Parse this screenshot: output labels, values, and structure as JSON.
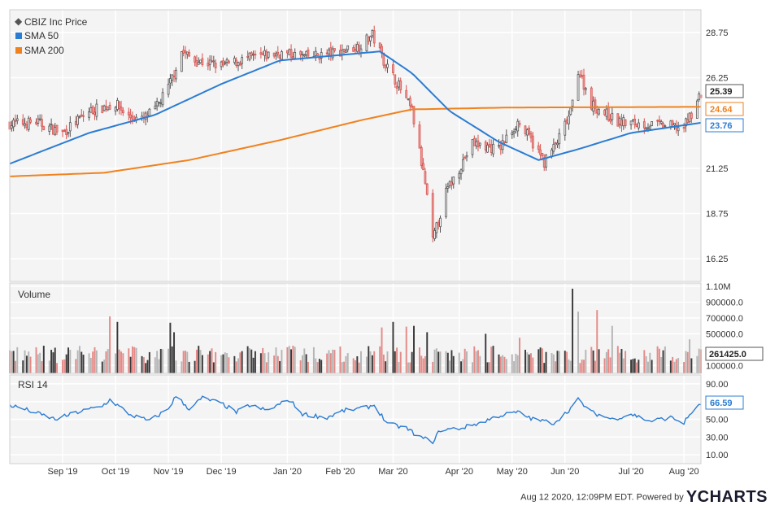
{
  "chart_data": {
    "type": "candlestick",
    "legend": [
      {
        "name": "CBIZ Inc Price",
        "color": "#555555",
        "marker": "diamond"
      },
      {
        "name": "SMA 50",
        "color": "#2b7cd3",
        "marker": "square"
      },
      {
        "name": "SMA 200",
        "color": "#f0821e",
        "marker": "square"
      }
    ],
    "x_ticks": [
      "Sep '19",
      "Oct '19",
      "Nov '19",
      "Dec '19",
      "Jan '20",
      "Feb '20",
      "Mar '20",
      "Apr '20",
      "May '20",
      "Jun '20",
      "Jul '20",
      "Aug '20"
    ],
    "price": {
      "ylim": [
        15.0,
        30.0
      ],
      "yticks": [
        "28.75",
        "26.25",
        "21.25",
        "18.75",
        "16.25"
      ],
      "last_price": 25.39,
      "last_price_label": "25.39",
      "sma200_last": 24.64,
      "sma200_label": "24.64",
      "sma50_last": 23.76,
      "sma50_label": "23.76",
      "close_points": [
        [
          "Aug 12 2019",
          23.7
        ],
        [
          "Aug 26 2019",
          23.8
        ],
        [
          "Sep 9 2019",
          23.2
        ],
        [
          "Sep 23 2019",
          24.4
        ],
        [
          "Oct 7 2019",
          24.8
        ],
        [
          "Oct 14 2019",
          24.1
        ],
        [
          "Oct 21 2019",
          23.9
        ],
        [
          "Oct 28 2019",
          24.5
        ],
        [
          "Nov 4 2019",
          25.7
        ],
        [
          "Nov 11 2019",
          27.7
        ],
        [
          "Nov 18 2019",
          27.2
        ],
        [
          "Dec 2 2019",
          26.9
        ],
        [
          "Dec 16 2019",
          27.3
        ],
        [
          "Jan 2 2020",
          27.6
        ],
        [
          "Jan 16 2020",
          27.4
        ],
        [
          "Jan 30 2020",
          27.6
        ],
        [
          "Feb 13 2020",
          28.0
        ],
        [
          "Feb 20 2020",
          28.6
        ],
        [
          "Feb 27 2020",
          27.0
        ],
        [
          "Mar 5 2020",
          25.8
        ],
        [
          "Mar 12 2020",
          24.4
        ],
        [
          "Mar 19 2020",
          20.4
        ],
        [
          "Mar 23 2020",
          17.2
        ],
        [
          "Mar 30 2020",
          19.9
        ],
        [
          "Apr 13 2020",
          22.6
        ],
        [
          "Apr 27 2020",
          22.3
        ],
        [
          "May 7 2020",
          23.8
        ],
        [
          "May 14 2020",
          22.8
        ],
        [
          "May 21 2020",
          21.6
        ],
        [
          "May 28 2020",
          22.7
        ],
        [
          "Jun 4 2020",
          24.3
        ],
        [
          "Jun 8 2020",
          26.7
        ],
        [
          "Jun 15 2020",
          24.8
        ],
        [
          "Jun 29 2020",
          23.8
        ],
        [
          "Jul 10 2020",
          23.7
        ],
        [
          "Jul 24 2020",
          23.6
        ],
        [
          "Aug 3 2020",
          23.5
        ],
        [
          "Aug 7 2020",
          24.3
        ],
        [
          "Aug 12 2020",
          25.39
        ]
      ],
      "sma50_points": [
        [
          "Aug 12 2019",
          21.5
        ],
        [
          "Sep 23 2019",
          23.2
        ],
        [
          "Oct 28 2019",
          24.2
        ],
        [
          "Dec 2 2019",
          25.9
        ],
        [
          "Jan 2 2020",
          27.2
        ],
        [
          "Feb 3 2020",
          27.5
        ],
        [
          "Feb 24 2020",
          27.7
        ],
        [
          "Mar 12 2020",
          26.5
        ],
        [
          "Apr 1 2020",
          24.4
        ],
        [
          "Apr 27 2020",
          22.7
        ],
        [
          "May 18 2020",
          21.7
        ],
        [
          "Jun 8 2020",
          22.3
        ],
        [
          "Jul 6 2020",
          23.2
        ],
        [
          "Aug 12 2020",
          23.76
        ]
      ],
      "sma200_points": [
        [
          "Aug 12 2019",
          20.8
        ],
        [
          "Oct 1 2019",
          21.0
        ],
        [
          "Nov 15 2019",
          21.7
        ],
        [
          "Jan 2 2020",
          22.8
        ],
        [
          "Feb 14 2020",
          23.9
        ],
        [
          "Mar 12 2020",
          24.5
        ],
        [
          "May 1 2020",
          24.6
        ],
        [
          "Aug 12 2020",
          24.64
        ]
      ]
    },
    "volume": {
      "label": "Volume",
      "ylim": [
        0,
        1100000
      ],
      "yticks": [
        {
          "value": 1100000,
          "label": "1.10M"
        },
        {
          "value": 900000,
          "label": "900000.0"
        },
        {
          "value": 700000,
          "label": "700000.0"
        },
        {
          "value": 500000,
          "label": "500000.0"
        },
        {
          "value": 100000,
          "label": "100000.0"
        }
      ],
      "last_value": 261425.0,
      "last_label": "261425.0",
      "spikes": [
        [
          "Oct 4 2019",
          720000
        ],
        [
          "Oct 8 2019",
          650000
        ],
        [
          "Nov 5 2019",
          640000
        ],
        [
          "Nov 7 2019",
          520000
        ],
        [
          "Jan 9 2020",
          350000
        ],
        [
          "Feb 25 2020",
          580000
        ],
        [
          "Mar 2 2020",
          650000
        ],
        [
          "Mar 9 2020",
          590000
        ],
        [
          "Mar 13 2020",
          600000
        ],
        [
          "Mar 20 2020",
          520000
        ],
        [
          "Apr 20 2020",
          500000
        ],
        [
          "May 8 2020",
          450000
        ],
        [
          "Jun 5 2020",
          1070000
        ],
        [
          "Jun 8 2020",
          780000
        ],
        [
          "Jun 18 2020",
          800000
        ],
        [
          "Jun 26 2020",
          600000
        ],
        [
          "Aug 6 2020",
          430000
        ]
      ]
    },
    "rsi": {
      "label": "RSI 14",
      "ylim": [
        0,
        100
      ],
      "yticks": [
        {
          "value": 90,
          "label": "90.00"
        },
        {
          "value": 70,
          "label": "70.00"
        },
        {
          "value": 50,
          "label": "50.00"
        },
        {
          "value": 30,
          "label": "30.00"
        },
        {
          "value": 10,
          "label": "10.00"
        }
      ],
      "last_value": 66.59,
      "last_label": "66.59",
      "points": [
        [
          "Aug 12 2019",
          66
        ],
        [
          "Aug 22 2019",
          60
        ],
        [
          "Sep 5 2019",
          50
        ],
        [
          "Sep 17 2019",
          58
        ],
        [
          "Sep 30 2019",
          65
        ],
        [
          "Oct 4 2019",
          72
        ],
        [
          "Oct 15 2019",
          55
        ],
        [
          "Oct 25 2019",
          48
        ],
        [
          "Nov 4 2019",
          62
        ],
        [
          "Nov 8 2019",
          76
        ],
        [
          "Nov 15 2019",
          62
        ],
        [
          "Nov 22 2019",
          74
        ],
        [
          "Dec 2 2019",
          68
        ],
        [
          "Dec 10 2019",
          58
        ],
        [
          "Dec 17 2019",
          66
        ],
        [
          "Dec 26 2019",
          60
        ],
        [
          "Jan 7 2020",
          72
        ],
        [
          "Jan 14 2020",
          56
        ],
        [
          "Jan 27 2020",
          52
        ],
        [
          "Feb 5 2020",
          60
        ],
        [
          "Feb 14 2020",
          62
        ],
        [
          "Feb 21 2020",
          66
        ],
        [
          "Feb 28 2020",
          45
        ],
        [
          "Mar 9 2020",
          40
        ],
        [
          "Mar 16 2020",
          30
        ],
        [
          "Mar 23 2020",
          25
        ],
        [
          "Mar 27 2020",
          38
        ],
        [
          "Apr 7 2020",
          40
        ],
        [
          "Apr 17 2020",
          46
        ],
        [
          "Apr 27 2020",
          54
        ],
        [
          "May 7 2020",
          58
        ],
        [
          "May 15 2020",
          50
        ],
        [
          "May 26 2020",
          46
        ],
        [
          "Jun 2 2020",
          58
        ],
        [
          "Jun 8 2020",
          72
        ],
        [
          "Jun 15 2020",
          58
        ],
        [
          "Jun 26 2020",
          50
        ],
        [
          "Jul 6 2020",
          56
        ],
        [
          "Jul 16 2020",
          48
        ],
        [
          "Jul 27 2020",
          52
        ],
        [
          "Aug 3 2020",
          46
        ],
        [
          "Aug 7 2020",
          58
        ],
        [
          "Aug 12 2020",
          66.59
        ]
      ]
    }
  },
  "footer": {
    "timestamp": "Aug 12 2020, 12:09PM EDT.",
    "powered_by": "Powered by",
    "brand": "YCHARTS"
  }
}
